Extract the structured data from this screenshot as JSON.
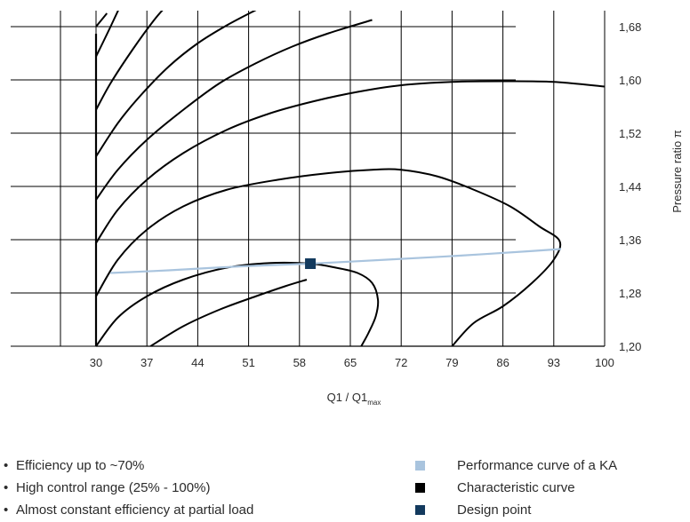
{
  "chart_data": {
    "type": "line",
    "title": "",
    "xlabel_main": "Q1 / Q1",
    "xlabel_sub": "max",
    "ylabel": "Pressure ratio π",
    "xlim": [
      30,
      100
    ],
    "ylim": [
      1.2,
      1.68
    ],
    "x_ticks": [
      "30",
      "37",
      "44",
      "51",
      "58",
      "65",
      "72",
      "79",
      "86",
      "93",
      "100"
    ],
    "y_ticks": [
      "1,20",
      "1,28",
      "1,36",
      "1,44",
      "1,52",
      "1,60",
      "1,68"
    ],
    "grid": true,
    "colors": {
      "performance": "#a9c4de",
      "characteristic": "#000000",
      "design": "#133a5e",
      "grid": "#000000"
    },
    "series": [
      {
        "name": "Characteristic curve",
        "kind": "line",
        "points": [
          [
            30.0,
            1.68
          ],
          [
            31.5,
            1.7
          ]
        ]
      },
      {
        "name": "Characteristic curve",
        "kind": "line",
        "points": [
          [
            30.0,
            1.635
          ],
          [
            32.0,
            1.68
          ],
          [
            35.0,
            1.75
          ]
        ]
      },
      {
        "name": "Characteristic curve",
        "kind": "line",
        "points": [
          [
            30.0,
            1.555
          ],
          [
            32.0,
            1.595
          ],
          [
            35.0,
            1.645
          ],
          [
            38.0,
            1.69
          ],
          [
            40.0,
            1.715
          ]
        ]
      },
      {
        "name": "Characteristic curve",
        "kind": "line",
        "points": [
          [
            30.0,
            1.485
          ],
          [
            33.0,
            1.535
          ],
          [
            36.0,
            1.575
          ],
          [
            40.0,
            1.62
          ],
          [
            44.0,
            1.655
          ],
          [
            48.0,
            1.682
          ],
          [
            52.0,
            1.705
          ]
        ]
      },
      {
        "name": "Characteristic curve",
        "kind": "line",
        "points": [
          [
            30.0,
            1.42
          ],
          [
            33.0,
            1.465
          ],
          [
            37.0,
            1.51
          ],
          [
            42.0,
            1.555
          ],
          [
            47.0,
            1.595
          ],
          [
            52.0,
            1.625
          ],
          [
            57.0,
            1.65
          ],
          [
            62.0,
            1.67
          ],
          [
            68.0,
            1.69
          ]
        ]
      },
      {
        "name": "Characteristic curve",
        "kind": "line",
        "points": [
          [
            30.0,
            1.355
          ],
          [
            33.0,
            1.405
          ],
          [
            37.0,
            1.45
          ],
          [
            42.0,
            1.49
          ],
          [
            48.0,
            1.525
          ],
          [
            54.0,
            1.55
          ],
          [
            60.0,
            1.568
          ],
          [
            66.0,
            1.582
          ],
          [
            72.0,
            1.592
          ],
          [
            79.0,
            1.597
          ],
          [
            86.0,
            1.598
          ],
          [
            93.0,
            1.597
          ],
          [
            100.0,
            1.59
          ]
        ]
      },
      {
        "name": "Characteristic curve",
        "kind": "line",
        "points": [
          [
            30.0,
            1.275
          ],
          [
            33.0,
            1.33
          ],
          [
            37.0,
            1.375
          ],
          [
            42.0,
            1.41
          ],
          [
            48.0,
            1.435
          ],
          [
            55.0,
            1.45
          ],
          [
            62.0,
            1.46
          ],
          [
            68.0,
            1.465
          ],
          [
            72.0,
            1.465
          ],
          [
            77.0,
            1.455
          ],
          [
            82.0,
            1.435
          ],
          [
            87.0,
            1.41
          ],
          [
            91.0,
            1.38
          ],
          [
            93.8,
            1.358
          ],
          [
            93.0,
            1.33
          ],
          [
            90.0,
            1.295
          ],
          [
            86.0,
            1.26
          ],
          [
            82.0,
            1.235
          ],
          [
            79.0,
            1.2
          ]
        ]
      },
      {
        "name": "Characteristic curve",
        "kind": "line",
        "points": [
          [
            30.0,
            1.2
          ],
          [
            33.0,
            1.243
          ],
          [
            37.0,
            1.275
          ],
          [
            42.0,
            1.3
          ],
          [
            48.0,
            1.318
          ],
          [
            54.0,
            1.325
          ],
          [
            59.5,
            1.324
          ],
          [
            63.0,
            1.318
          ],
          [
            66.0,
            1.31
          ],
          [
            68.0,
            1.295
          ],
          [
            68.8,
            1.27
          ],
          [
            68.5,
            1.245
          ],
          [
            67.5,
            1.22
          ],
          [
            66.5,
            1.2
          ]
        ]
      },
      {
        "name": "Characteristic curve",
        "kind": "line",
        "points": [
          [
            37.5,
            1.2
          ],
          [
            42.0,
            1.23
          ],
          [
            47.0,
            1.255
          ],
          [
            52.0,
            1.275
          ],
          [
            56.0,
            1.29
          ],
          [
            59.0,
            1.3
          ]
        ]
      },
      {
        "name": "Performance curve of a KA",
        "kind": "line",
        "points": [
          [
            32.0,
            1.31
          ],
          [
            40.0,
            1.314
          ],
          [
            50.0,
            1.32
          ],
          [
            59.5,
            1.324
          ],
          [
            70.0,
            1.33
          ],
          [
            80.0,
            1.336
          ],
          [
            90.0,
            1.343
          ],
          [
            94.0,
            1.346
          ]
        ]
      }
    ],
    "design_point": {
      "name": "Design point",
      "x": 59.5,
      "y": 1.324
    }
  },
  "bullets": [
    "Efficiency up to ~70%",
    "High control range (25% - 100%)",
    "Almost constant efficiency at partial load"
  ],
  "legend": [
    {
      "label": "Performance curve of a KA",
      "color": "#a9c4de"
    },
    {
      "label": "Characteristic curve",
      "color": "#000000"
    },
    {
      "label": "Design point",
      "color": "#133a5e"
    }
  ]
}
